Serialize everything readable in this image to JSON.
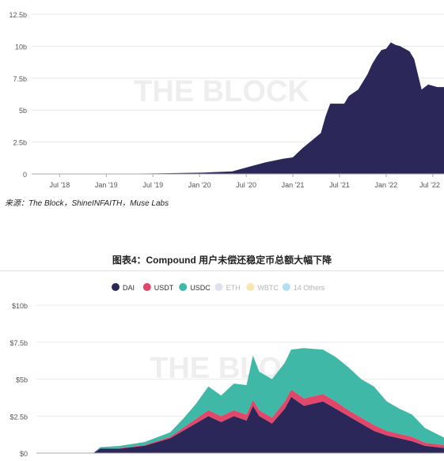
{
  "source_note": "来源：The Block，ShineINFAITH，Muse Labs",
  "figure_title": "图表4：Compound 用户未偿还稳定币总额大幅下降",
  "watermark": "THE BLOCK",
  "colors": {
    "navy": "#2b2759",
    "red": "#e0476a",
    "teal": "#3fb8a8",
    "eth": "#dfe0f2",
    "wbtc": "#f8e6ae",
    "others": "#b3dff0",
    "axis_text": "#555555",
    "watermark": "#eeeeee"
  },
  "chart_data": [
    {
      "type": "area",
      "title": "",
      "yticks": [
        "0",
        "2.5b",
        "5b",
        "7.5b",
        "10b",
        "12.5b"
      ],
      "ylim": [
        0,
        12.5
      ],
      "xticks": [
        "Jul '18",
        "Jan '19",
        "Jul '19",
        "Jan '20",
        "Jul '20",
        "Jan '21",
        "Jul '21",
        "Jan '22",
        "Jul '22"
      ],
      "series": [
        {
          "values": [
            [
              2018.3,
              0
            ],
            [
              2019.0,
              0.02
            ],
            [
              2019.5,
              0.04
            ],
            [
              2020.0,
              0.1
            ],
            [
              2020.35,
              0.2
            ],
            [
              2020.5,
              0.5
            ],
            [
              2020.7,
              0.9
            ],
            [
              2020.9,
              1.2
            ],
            [
              2021.0,
              1.3
            ],
            [
              2021.1,
              2.0
            ],
            [
              2021.2,
              2.6
            ],
            [
              2021.3,
              3.2
            ],
            [
              2021.35,
              4.5
            ],
            [
              2021.4,
              5.5
            ],
            [
              2021.55,
              5.5
            ],
            [
              2021.6,
              6.1
            ],
            [
              2021.7,
              6.6
            ],
            [
              2021.8,
              7.8
            ],
            [
              2021.85,
              8.6
            ],
            [
              2021.9,
              9.2
            ],
            [
              2021.95,
              9.7
            ],
            [
              2022.0,
              9.8
            ],
            [
              2022.05,
              10.3
            ],
            [
              2022.1,
              10.1
            ],
            [
              2022.15,
              10.0
            ],
            [
              2022.2,
              9.8
            ],
            [
              2022.25,
              9.6
            ],
            [
              2022.3,
              9.0
            ],
            [
              2022.38,
              6.6
            ],
            [
              2022.45,
              7.0
            ],
            [
              2022.55,
              6.8
            ],
            [
              2022.62,
              6.8
            ]
          ]
        }
      ]
    },
    {
      "type": "area",
      "title": "",
      "yticks": [
        "$0",
        "$2.5b",
        "$5b",
        "$7.5b",
        "$10b"
      ],
      "ylim": [
        0,
        10
      ],
      "legend": [
        "DAI",
        "USDT",
        "USDC",
        "ETH",
        "WBTC",
        "14 Others"
      ],
      "legend_placement": "top",
      "x_start": 2019.35,
      "x_end": 2022.55,
      "series": [
        {
          "name": "DAI",
          "values": [
            [
              2019.35,
              0.0
            ],
            [
              2019.8,
              0.02
            ],
            [
              2019.85,
              0.3
            ],
            [
              2020.0,
              0.3
            ],
            [
              2020.2,
              0.5
            ],
            [
              2020.4,
              1.0
            ],
            [
              2020.5,
              1.5
            ],
            [
              2020.6,
              2.0
            ],
            [
              2020.7,
              2.5
            ],
            [
              2020.8,
              2.1
            ],
            [
              2020.9,
              2.5
            ],
            [
              2021.0,
              2.2
            ],
            [
              2021.05,
              3.2
            ],
            [
              2021.1,
              2.5
            ],
            [
              2021.2,
              2.0
            ],
            [
              2021.3,
              3.0
            ],
            [
              2021.35,
              3.8
            ],
            [
              2021.45,
              3.2
            ],
            [
              2021.6,
              3.5
            ],
            [
              2021.7,
              3.0
            ],
            [
              2021.8,
              2.5
            ],
            [
              2021.9,
              2.0
            ],
            [
              2022.0,
              1.5
            ],
            [
              2022.1,
              1.2
            ],
            [
              2022.2,
              1.0
            ],
            [
              2022.3,
              0.8
            ],
            [
              2022.4,
              0.5
            ],
            [
              2022.55,
              0.35
            ]
          ]
        },
        {
          "name": "USDT",
          "values": [
            [
              2019.35,
              0.0
            ],
            [
              2019.8,
              0.0
            ],
            [
              2019.85,
              0.02
            ],
            [
              2020.0,
              0.03
            ],
            [
              2020.2,
              0.05
            ],
            [
              2020.4,
              0.1
            ],
            [
              2020.5,
              0.2
            ],
            [
              2020.6,
              0.3
            ],
            [
              2020.7,
              0.4
            ],
            [
              2020.8,
              0.4
            ],
            [
              2020.9,
              0.4
            ],
            [
              2021.0,
              0.4
            ],
            [
              2021.05,
              0.4
            ],
            [
              2021.1,
              0.4
            ],
            [
              2021.2,
              0.4
            ],
            [
              2021.3,
              0.5
            ],
            [
              2021.35,
              0.5
            ],
            [
              2021.45,
              0.5
            ],
            [
              2021.6,
              0.5
            ],
            [
              2021.7,
              0.5
            ],
            [
              2021.8,
              0.4
            ],
            [
              2021.9,
              0.4
            ],
            [
              2022.0,
              0.4
            ],
            [
              2022.1,
              0.3
            ],
            [
              2022.2,
              0.3
            ],
            [
              2022.3,
              0.3
            ],
            [
              2022.4,
              0.2
            ],
            [
              2022.55,
              0.2
            ]
          ]
        },
        {
          "name": "USDC",
          "values": [
            [
              2019.35,
              0.0
            ],
            [
              2019.8,
              0.0
            ],
            [
              2019.85,
              0.08
            ],
            [
              2020.0,
              0.15
            ],
            [
              2020.2,
              0.2
            ],
            [
              2020.4,
              0.3
            ],
            [
              2020.5,
              0.6
            ],
            [
              2020.6,
              1.0
            ],
            [
              2020.7,
              1.6
            ],
            [
              2020.8,
              1.4
            ],
            [
              2020.9,
              1.8
            ],
            [
              2021.0,
              2.0
            ],
            [
              2021.05,
              3.0
            ],
            [
              2021.1,
              2.6
            ],
            [
              2021.2,
              2.6
            ],
            [
              2021.3,
              2.6
            ],
            [
              2021.35,
              2.7
            ],
            [
              2021.45,
              3.4
            ],
            [
              2021.6,
              3.0
            ],
            [
              2021.7,
              3.0
            ],
            [
              2021.8,
              2.9
            ],
            [
              2021.9,
              2.6
            ],
            [
              2022.0,
              2.6
            ],
            [
              2022.1,
              2.0
            ],
            [
              2022.2,
              1.7
            ],
            [
              2022.3,
              1.5
            ],
            [
              2022.4,
              1.0
            ],
            [
              2022.55,
              0.5
            ]
          ]
        }
      ]
    }
  ]
}
